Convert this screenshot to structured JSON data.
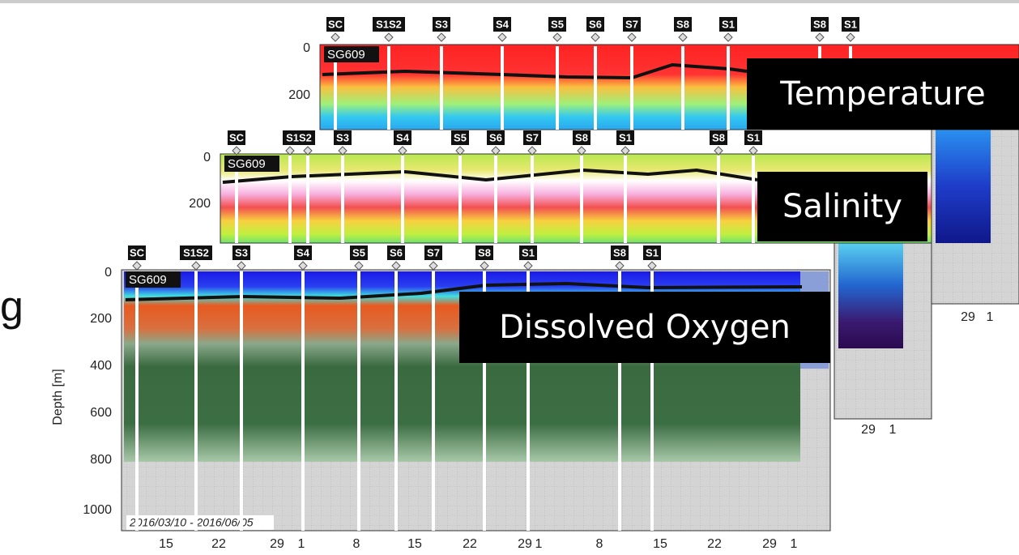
{
  "left_edge_text": "g",
  "panels": [
    {
      "label": "Temperature",
      "glider": "SG609",
      "stations": [
        "SC",
        "S1S2",
        "S3",
        "S4",
        "S5",
        "S6",
        "S7",
        "S8",
        "S1",
        "S8",
        "S1"
      ],
      "depth_ticks": [
        0,
        200
      ],
      "date_ticks": [
        29,
        1
      ]
    },
    {
      "label": "Salinity",
      "glider": "SG609",
      "stations": [
        "SC",
        "S1S2",
        "S3",
        "S4",
        "S5",
        "S6",
        "S7",
        "S8",
        "S1",
        "S8",
        "S1"
      ],
      "depth_ticks": [
        0,
        200
      ],
      "date_ticks": [
        29,
        1
      ]
    },
    {
      "label": "Dissolved Oxygen",
      "glider": "SG609",
      "depth_axis_label": "Depth [m]",
      "date_range": "2016/03/10 - 2016/06/05",
      "stations": [
        "SC",
        "S1S2",
        "S3",
        "S4",
        "S5",
        "S6",
        "S7",
        "S8",
        "S1",
        "S8",
        "S1"
      ],
      "depth_ticks": [
        0,
        200,
        400,
        600,
        800,
        1000
      ],
      "date_ticks": [
        15,
        22,
        29,
        1,
        8,
        15,
        22,
        29,
        1,
        8,
        15,
        22,
        29,
        1
      ]
    }
  ]
}
